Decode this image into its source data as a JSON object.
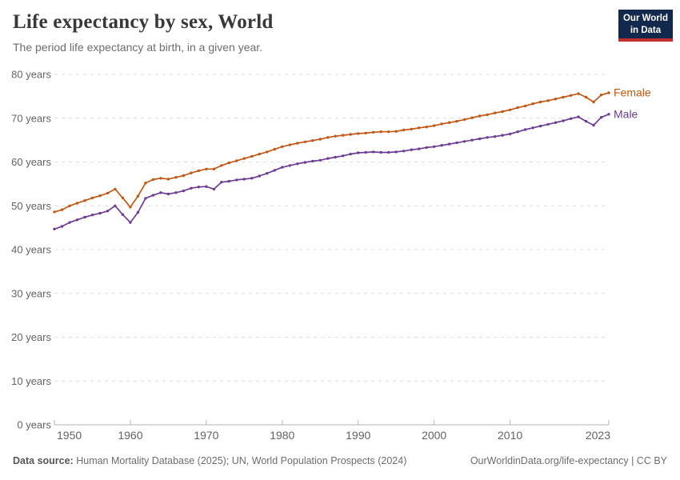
{
  "header": {
    "title": "Life expectancy by sex, World",
    "subtitle": "The period life expectancy at birth, in a given year.",
    "logo": {
      "line1": "Our World",
      "line2": "in Data"
    }
  },
  "chart_data": {
    "type": "line",
    "title": "Life expectancy by sex, World",
    "xlabel": "",
    "ylabel": "years",
    "xlim": [
      1950,
      2023
    ],
    "ylim": [
      0,
      80
    ],
    "grid": "dashed horizontal gridlines every 10 years",
    "legend_position": "labels at right end of each line",
    "x_ticks": [
      1950,
      1960,
      1970,
      1980,
      1990,
      2000,
      2010,
      2023
    ],
    "y_ticks": [
      0,
      10,
      20,
      30,
      40,
      50,
      60,
      70,
      80
    ],
    "y_tick_suffix": " years",
    "x": [
      1950,
      1951,
      1952,
      1953,
      1954,
      1955,
      1956,
      1957,
      1958,
      1959,
      1960,
      1961,
      1962,
      1963,
      1964,
      1965,
      1966,
      1967,
      1968,
      1969,
      1970,
      1971,
      1972,
      1973,
      1974,
      1975,
      1976,
      1977,
      1978,
      1979,
      1980,
      1981,
      1982,
      1983,
      1984,
      1985,
      1986,
      1987,
      1988,
      1989,
      1990,
      1991,
      1992,
      1993,
      1994,
      1995,
      1996,
      1997,
      1998,
      1999,
      2000,
      2001,
      2002,
      2003,
      2004,
      2005,
      2006,
      2007,
      2008,
      2009,
      2010,
      2011,
      2012,
      2013,
      2014,
      2015,
      2016,
      2017,
      2018,
      2019,
      2020,
      2021,
      2022,
      2023
    ],
    "series": [
      {
        "name": "Female",
        "color": "#C05917",
        "values": [
          48.6,
          49.1,
          50.0,
          50.6,
          51.2,
          51.8,
          52.3,
          52.9,
          53.8,
          51.8,
          49.7,
          52.2,
          55.2,
          56.0,
          56.3,
          56.1,
          56.5,
          56.9,
          57.5,
          58.0,
          58.4,
          58.4,
          59.2,
          59.8,
          60.3,
          60.8,
          61.3,
          61.8,
          62.3,
          62.9,
          63.5,
          63.9,
          64.3,
          64.6,
          64.9,
          65.2,
          65.6,
          65.9,
          66.1,
          66.3,
          66.5,
          66.6,
          66.8,
          66.9,
          66.9,
          67.0,
          67.3,
          67.5,
          67.8,
          68.0,
          68.3,
          68.7,
          69.0,
          69.3,
          69.7,
          70.1,
          70.5,
          70.8,
          71.2,
          71.5,
          71.9,
          72.4,
          72.8,
          73.3,
          73.7,
          74.0,
          74.4,
          74.8,
          75.2,
          75.6,
          74.8,
          73.7,
          75.3,
          75.8
        ]
      },
      {
        "name": "Male",
        "color": "#6D3E91",
        "values": [
          44.7,
          45.3,
          46.2,
          46.8,
          47.4,
          47.9,
          48.3,
          48.8,
          50.0,
          48.0,
          46.2,
          48.5,
          51.7,
          52.4,
          53.0,
          52.7,
          53.0,
          53.4,
          54.0,
          54.3,
          54.4,
          53.8,
          55.4,
          55.6,
          55.9,
          56.1,
          56.3,
          56.8,
          57.4,
          58.1,
          58.8,
          59.2,
          59.6,
          59.9,
          60.2,
          60.4,
          60.8,
          61.1,
          61.4,
          61.8,
          62.1,
          62.2,
          62.3,
          62.2,
          62.2,
          62.3,
          62.5,
          62.8,
          63.0,
          63.3,
          63.5,
          63.8,
          64.1,
          64.4,
          64.7,
          65.0,
          65.3,
          65.6,
          65.8,
          66.1,
          66.4,
          66.9,
          67.4,
          67.8,
          68.2,
          68.6,
          69.0,
          69.4,
          69.9,
          70.3,
          69.3,
          68.4,
          70.2,
          70.9
        ]
      }
    ]
  },
  "footer": {
    "source_label": "Data source:",
    "source_text": "Human Mortality Database (2025); UN, World Population Prospects (2024)",
    "credit": "OurWorldinData.org/life-expectancy | CC BY"
  },
  "colors": {
    "female_line": "#C05917",
    "male_line": "#6D3E91",
    "logo_background": "#12294D",
    "logo_accent": "#C2302E",
    "gridline": "#dcdcdc",
    "tick_text": "#636363"
  }
}
